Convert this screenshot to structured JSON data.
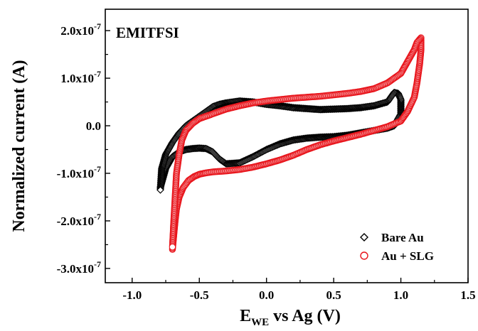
{
  "chart_data": {
    "type": "scatter",
    "annotation": "EMITFSI",
    "xlabel": {
      "main": "E",
      "subscript": "WE",
      "rest": " vs Ag (V)"
    },
    "ylabel": "Normalized current (A)",
    "xlim": [
      -1.2,
      1.5
    ],
    "ylim": [
      -3.3e-07,
      2.45e-07
    ],
    "xticks": [
      -1.0,
      -0.5,
      0.0,
      0.5,
      1.0,
      1.5
    ],
    "xtick_labels": [
      "-1.0",
      "-0.5",
      "0.0",
      "0.5",
      "1.0",
      "1.5"
    ],
    "yticks": [
      2e-07,
      1e-07,
      0.0,
      -1e-07,
      -2e-07,
      -3e-07
    ],
    "ytick_labels": [
      "2.0x10",
      "1.0x10",
      "0.0",
      "-1.0x10",
      "-2.0x10",
      "-3.0x10"
    ],
    "ytick_exponent": "-7",
    "grid": false,
    "legend_position": "bottom-right",
    "series": [
      {
        "name": "Bare Au",
        "marker": "diamond",
        "color": "#000000",
        "x": [
          -0.79,
          -0.75,
          -0.7,
          -0.65,
          -0.6,
          -0.55,
          -0.5,
          -0.45,
          -0.4,
          -0.35,
          -0.3,
          -0.2,
          -0.1,
          0.0,
          0.1,
          0.2,
          0.3,
          0.4,
          0.5,
          0.6,
          0.7,
          0.8,
          0.9,
          0.95,
          1.0,
          1.0,
          0.98,
          0.95,
          0.9,
          0.8,
          0.7,
          0.6,
          0.5,
          0.4,
          0.3,
          0.2,
          0.1,
          0.0,
          -0.1,
          -0.2,
          -0.25,
          -0.3,
          -0.35,
          -0.4,
          -0.45,
          -0.5,
          -0.55,
          -0.6,
          -0.65,
          -0.7,
          -0.75,
          -0.78,
          -0.79
        ],
        "y": [
          -1.3e-07,
          -9e-08,
          -6.5e-08,
          -5.5e-08,
          -5e-08,
          -4.8e-08,
          -4.7e-08,
          -4.8e-08,
          -5.5e-08,
          -7e-08,
          -8e-08,
          -7.8e-08,
          -6.5e-08,
          -5e-08,
          -3.8e-08,
          -3e-08,
          -2.6e-08,
          -2.4e-08,
          -2.3e-08,
          -2e-08,
          -1.5e-08,
          -1e-08,
          -5e-09,
          0.0,
          2.5e-08,
          5.5e-08,
          6.8e-08,
          7e-08,
          5e-08,
          4.2e-08,
          3.8e-08,
          3.6e-08,
          3.5e-08,
          3.4e-08,
          3.6e-08,
          3.8e-08,
          4.2e-08,
          4.5e-08,
          5e-08,
          5.2e-08,
          5e-08,
          4.8e-08,
          4.5e-08,
          4e-08,
          3e-08,
          2e-08,
          1e-08,
          0.0,
          -1.5e-08,
          -3.5e-08,
          -6e-08,
          -9e-08,
          -1.35e-07
        ]
      },
      {
        "name": "Au + SLG",
        "marker": "circle",
        "color": "#e8141b",
        "x": [
          -0.7,
          -0.69,
          -0.68,
          -0.67,
          -0.65,
          -0.62,
          -0.58,
          -0.54,
          -0.5,
          -0.45,
          -0.4,
          -0.3,
          -0.2,
          -0.1,
          0.0,
          0.1,
          0.2,
          0.3,
          0.4,
          0.5,
          0.6,
          0.7,
          0.8,
          0.9,
          1.0,
          1.05,
          1.1,
          1.12,
          1.14,
          1.15,
          1.15,
          1.12,
          1.1,
          1.05,
          1.0,
          0.9,
          0.8,
          0.7,
          0.6,
          0.5,
          0.4,
          0.3,
          0.2,
          0.1,
          0.0,
          -0.1,
          -0.2,
          -0.3,
          -0.4,
          -0.5,
          -0.55,
          -0.6,
          -0.63,
          -0.65,
          -0.67,
          -0.68,
          -0.69,
          -0.7
        ],
        "y": [
          -2.6e-07,
          -2.3e-07,
          -2e-07,
          -1.75e-07,
          -1.5e-07,
          -1.3e-07,
          -1.15e-07,
          -1.07e-07,
          -1.02e-07,
          -9.9e-08,
          -9.7e-08,
          -9.5e-08,
          -9.2e-08,
          -8.7e-08,
          -8e-08,
          -7.2e-08,
          -6.2e-08,
          -5e-08,
          -4e-08,
          -3.2e-08,
          -2.5e-08,
          -1.8e-08,
          -1e-08,
          -2e-09,
          1e-08,
          3e-08,
          6e-08,
          9e-08,
          1.3e-07,
          1.6e-07,
          1.85e-07,
          1.75e-07,
          1.6e-07,
          1.35e-07,
          1.1e-07,
          9e-08,
          7.8e-08,
          7.2e-08,
          6.8e-08,
          6.5e-08,
          6.2e-08,
          6e-08,
          5.8e-08,
          5.5e-08,
          5.2e-08,
          4.8e-08,
          4.2e-08,
          3.5e-08,
          2.5e-08,
          1.5e-08,
          5e-09,
          -1e-08,
          -3e-08,
          -6e-08,
          -1e-07,
          -1.5e-07,
          -2e-07,
          -2.55e-07
        ]
      }
    ]
  }
}
